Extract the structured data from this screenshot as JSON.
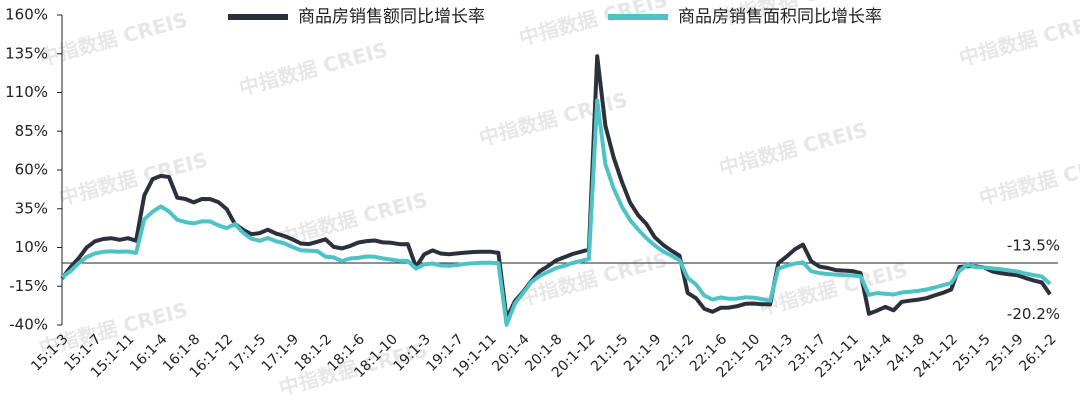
{
  "chart_data": {
    "type": "line",
    "watermark": "中指数据 CREIS",
    "categories": [
      "15:1-3",
      null,
      null,
      null,
      "15:1-7",
      null,
      null,
      null,
      "15:1-11",
      null,
      null,
      null,
      "16:1-4",
      null,
      null,
      null,
      "16:1-8",
      null,
      null,
      null,
      "16:1-12",
      null,
      null,
      null,
      "17:1-5",
      null,
      null,
      null,
      "17:1-9",
      null,
      null,
      null,
      "18:1-2",
      null,
      null,
      null,
      "18:1-6",
      null,
      null,
      null,
      "18:1-10",
      null,
      null,
      null,
      "19:1-3",
      null,
      null,
      null,
      "19:1-7",
      null,
      null,
      null,
      "19:1-11",
      null,
      null,
      null,
      "20:1-4",
      null,
      null,
      null,
      "20:1-8",
      null,
      null,
      null,
      "20:1-12",
      null,
      null,
      null,
      "21:1-5",
      null,
      null,
      null,
      "21:1-9",
      null,
      null,
      null,
      "22:1-2",
      null,
      null,
      null,
      "22:1-6",
      null,
      null,
      null,
      "22:1-10",
      null,
      null,
      null,
      "23:1-3",
      null,
      null,
      null,
      "23:1-7",
      null,
      null,
      null,
      "23:1-11",
      null,
      null,
      null,
      "24:1-4",
      null,
      null,
      null,
      "24:1-8",
      null,
      null,
      null,
      "24:1-12",
      null,
      null,
      null,
      "25:1-5",
      null,
      null,
      null,
      "25:1-9",
      null,
      null,
      null,
      "26:1-2"
    ],
    "series": [
      {
        "name": "商品房销售额同比增长率",
        "color": "#2b303b",
        "values": [
          -10,
          -3,
          3,
          10,
          14,
          15.5,
          16,
          15,
          16,
          14.4,
          43.6,
          54.1,
          56.2,
          55.5,
          42.1,
          41.3,
          39.1,
          41.3,
          41.2,
          39.3,
          34.8,
          25.1,
          21.5,
          18.6,
          19.3,
          21.5,
          19,
          17.4,
          15.3,
          12.6,
          12.2,
          13.7,
          15.3,
          10.4,
          9.4,
          11,
          13.2,
          14.1,
          14.5,
          13.3,
          13,
          12.1,
          12.2,
          -2.6,
          5.6,
          8.1,
          6.1,
          5.6,
          6.2,
          6.7,
          7.1,
          7.3,
          7.3,
          6.5,
          -35.9,
          -24.7,
          -18.6,
          -11.6,
          -5.4,
          -2.1,
          1.6,
          3.7,
          5.8,
          7.2,
          8.7,
          133.4,
          88.5,
          68.2,
          52.4,
          38.9,
          30.7,
          25,
          16.6,
          11.8,
          8,
          4.8,
          -19.3,
          -22.7,
          -29.5,
          -31.5,
          -28.9,
          -28.8,
          -27.9,
          -26.3,
          -26.1,
          -26.6,
          -26.7,
          -0.1,
          4.1,
          8.8,
          11.9,
          1.1,
          -2.3,
          -3.2,
          -4.6,
          -4.9,
          -5.2,
          -6.5,
          -32.7,
          -30.7,
          -28.3,
          -30.5,
          -25,
          -24.3,
          -23.6,
          -22.7,
          -20.9,
          -19.2,
          -17.1,
          -2.6,
          -2.1,
          -2.1,
          -2.9,
          -5.5,
          -6.5,
          -7.3,
          -7.9,
          -9.6,
          -11.2,
          -12.6,
          -20.2
        ],
        "value_labels": [
          null,
          null,
          null,
          null,
          null,
          null,
          null,
          null,
          null,
          null,
          null,
          null,
          null,
          null,
          null,
          null,
          null,
          null,
          null,
          null,
          null,
          null,
          null,
          null,
          null,
          null,
          null,
          null,
          null,
          null,
          null,
          null,
          null,
          null,
          null,
          null,
          null,
          null,
          null,
          null,
          null,
          null,
          null,
          null,
          null,
          null,
          null,
          null,
          null,
          null,
          null,
          null,
          null,
          null,
          null,
          null,
          null,
          null,
          null,
          null,
          null,
          null,
          null,
          null,
          null,
          null,
          null,
          null,
          null,
          null,
          null,
          null,
          null,
          null,
          null,
          null,
          null,
          null,
          null,
          null,
          null,
          null,
          null,
          null,
          null,
          null,
          null,
          null,
          null,
          null,
          null,
          null,
          null,
          null,
          null,
          null,
          null,
          null,
          null,
          null,
          null,
          null,
          null,
          null,
          null,
          null,
          null,
          null,
          null,
          null,
          null,
          null,
          null,
          null,
          null,
          null,
          null,
          null,
          null,
          null,
          "-20.2%"
        ]
      },
      {
        "name": "商品房销售面积同比增长率",
        "color": "#4dc3c6",
        "values": [
          -9.2,
          -5.4,
          -0.2,
          3.9,
          6.1,
          7.2,
          7.5,
          7.2,
          7.4,
          6.5,
          28.2,
          33.1,
          36.5,
          33.2,
          27.9,
          26.4,
          25.5,
          26.9,
          26.8,
          24.3,
          22.5,
          25.1,
          19.5,
          15.7,
          14.3,
          16.1,
          14,
          12.7,
          10.3,
          8.2,
          7.9,
          7.7,
          4.1,
          3.6,
          1.3,
          2.9,
          3.3,
          4.2,
          4,
          2.9,
          2.2,
          1.4,
          1.3,
          -3.6,
          -0.9,
          -0.3,
          -1.6,
          -1.8,
          -1.3,
          -0.6,
          -0.1,
          0.1,
          0.2,
          -0.1,
          -39.9,
          -26.3,
          -19.3,
          -12.3,
          -8.4,
          -5.8,
          -3.3,
          -1.8,
          0,
          1.3,
          2.6,
          104.9,
          63.8,
          48.1,
          36.4,
          27.7,
          21.5,
          15.9,
          11.3,
          7.5,
          4.8,
          1.9,
          -9.6,
          -13.8,
          -20.9,
          -23.6,
          -22.2,
          -23.1,
          -23,
          -22.2,
          -22.3,
          -23.3,
          -24.3,
          -3.6,
          -1.8,
          -0.4,
          0.4,
          -5.3,
          -6.5,
          -7.1,
          -7.5,
          -7.8,
          -8,
          -8.5,
          -20.5,
          -19.4,
          -19.8,
          -20.3,
          -19,
          -18.6,
          -18,
          -17.1,
          -15.8,
          -14.3,
          -12.9,
          -5.1,
          -1,
          -2.8,
          -2.9,
          -3.5,
          -4,
          -4.7,
          -5.5,
          -6.8,
          -7.8,
          -8.7,
          -13.5
        ],
        "value_labels": [
          null,
          null,
          null,
          null,
          null,
          null,
          null,
          null,
          null,
          null,
          null,
          null,
          null,
          null,
          null,
          null,
          null,
          null,
          null,
          null,
          null,
          null,
          null,
          null,
          null,
          null,
          null,
          null,
          null,
          null,
          null,
          null,
          null,
          null,
          null,
          null,
          null,
          null,
          null,
          null,
          null,
          null,
          null,
          null,
          null,
          null,
          null,
          null,
          null,
          null,
          null,
          null,
          null,
          null,
          null,
          null,
          null,
          null,
          null,
          null,
          null,
          null,
          null,
          null,
          null,
          null,
          null,
          null,
          null,
          null,
          null,
          null,
          null,
          null,
          null,
          null,
          null,
          null,
          null,
          null,
          null,
          null,
          null,
          null,
          null,
          null,
          null,
          null,
          null,
          null,
          null,
          null,
          null,
          null,
          null,
          null,
          null,
          null,
          null,
          null,
          null,
          null,
          null,
          null,
          null,
          null,
          null,
          null,
          null,
          null,
          null,
          null,
          null,
          null,
          null,
          null,
          null,
          null,
          null,
          null,
          "-13.5%"
        ]
      }
    ],
    "ylim": [
      -40,
      160
    ],
    "yticks": [
      {
        "value": 160,
        "label": "160%"
      },
      {
        "value": 135,
        "label": "135%"
      },
      {
        "value": 110,
        "label": "110%"
      },
      {
        "value": 85,
        "label": "85%"
      },
      {
        "value": 60,
        "label": "60%"
      },
      {
        "value": 35,
        "label": "35%"
      },
      {
        "value": 10,
        "label": "10%"
      },
      {
        "value": -15,
        "label": "-15%"
      },
      {
        "value": -40,
        "label": "-40%"
      }
    ],
    "grid": false,
    "legend": "top"
  }
}
